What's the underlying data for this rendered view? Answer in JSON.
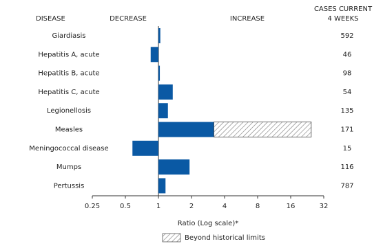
{
  "chart_data": {
    "type": "bar",
    "orientation": "horizontal",
    "log_scale": true,
    "category_header": "DISEASE",
    "decrease_label": "DECREASE",
    "increase_label": "INCREASE",
    "cases_header": [
      "CASES CURRENT",
      "4 WEEKS"
    ],
    "categories": [
      "Giardiasis",
      "Hepatitis A, acute",
      "Hepatitis B, acute",
      "Hepatitis C, acute",
      "Legionellosis",
      "Measles",
      "Meningococcal disease",
      "Mumps",
      "Pertussis"
    ],
    "values": [
      1.04,
      0.85,
      1.03,
      1.35,
      1.22,
      24.6,
      0.58,
      1.92,
      1.16
    ],
    "historical_limits": [
      null,
      null,
      null,
      null,
      null,
      3.2,
      null,
      null,
      null
    ],
    "cases": [
      592,
      46,
      98,
      54,
      135,
      171,
      15,
      116,
      787
    ],
    "color": "#0a59a4",
    "beyond_color": "#777777",
    "xlim": [
      0.25,
      32
    ],
    "xticks": [
      0.25,
      0.5,
      1,
      2,
      4,
      8,
      16,
      32
    ],
    "baseline": 1,
    "xlabel": "Ratio (Log scale)*",
    "legend_label": "Beyond historical limits"
  }
}
